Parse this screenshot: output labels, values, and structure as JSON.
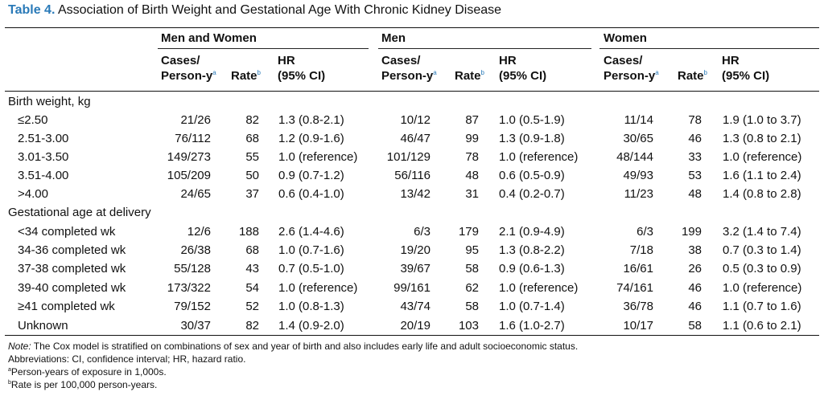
{
  "title": {
    "number": "Table 4.",
    "text": "Association of Birth Weight and Gestational Age With Chronic Kidney Disease"
  },
  "groups": [
    "Men and Women",
    "Men",
    "Women"
  ],
  "col_headers": {
    "cases_line1": "Cases/",
    "cases_line2": "Person-y",
    "cases_sup": "a",
    "rate": "Rate",
    "rate_sup": "b",
    "hr_line1": "HR",
    "hr_line2": "(95% CI)"
  },
  "sections": [
    {
      "label": "Birth weight, kg",
      "rows": [
        {
          "label": "≤2.50",
          "c1": "21/26",
          "r1": "82",
          "h1": "1.3 (0.8-2.1)",
          "c2": "10/12",
          "r2": "87",
          "h2": "1.0 (0.5-1.9)",
          "c3": "11/14",
          "r3": "78",
          "h3": "1.9 (1.0 to 3.7)"
        },
        {
          "label": "2.51-3.00",
          "c1": "76/112",
          "r1": "68",
          "h1": "1.2 (0.9-1.6)",
          "c2": "46/47",
          "r2": "99",
          "h2": "1.3 (0.9-1.8)",
          "c3": "30/65",
          "r3": "46",
          "h3": "1.3 (0.8 to 2.1)"
        },
        {
          "label": "3.01-3.50",
          "c1": "149/273",
          "r1": "55",
          "h1": "1.0 (reference)",
          "c2": "101/129",
          "r2": "78",
          "h2": "1.0 (reference)",
          "c3": "48/144",
          "r3": "33",
          "h3": "1.0 (reference)"
        },
        {
          "label": "3.51-4.00",
          "c1": "105/209",
          "r1": "50",
          "h1": "0.9 (0.7-1.2)",
          "c2": "56/116",
          "r2": "48",
          "h2": "0.6 (0.5-0.9)",
          "c3": "49/93",
          "r3": "53",
          "h3": "1.6 (1.1 to 2.4)"
        },
        {
          "label": ">4.00",
          "c1": "24/65",
          "r1": "37",
          "h1": "0.6 (0.4-1.0)",
          "c2": "13/42",
          "r2": "31",
          "h2": "0.4 (0.2-0.7)",
          "c3": "11/23",
          "r3": "48",
          "h3": "1.4 (0.8 to 2.8)"
        }
      ]
    },
    {
      "label": "Gestational age at delivery",
      "rows": [
        {
          "label": "<34 completed wk",
          "c1": "12/6",
          "r1": "188",
          "h1": "2.6 (1.4-4.6)",
          "c2": "6/3",
          "r2": "179",
          "h2": "2.1 (0.9-4.9)",
          "c3": "6/3",
          "r3": "199",
          "h3": "3.2 (1.4 to 7.4)"
        },
        {
          "label": "34-36 completed wk",
          "c1": "26/38",
          "r1": "68",
          "h1": "1.0 (0.7-1.6)",
          "c2": "19/20",
          "r2": "95",
          "h2": "1.3 (0.8-2.2)",
          "c3": "7/18",
          "r3": "38",
          "h3": "0.7 (0.3 to 1.4)"
        },
        {
          "label": "37-38 completed wk",
          "c1": "55/128",
          "r1": "43",
          "h1": "0.7 (0.5-1.0)",
          "c2": "39/67",
          "r2": "58",
          "h2": "0.9 (0.6-1.3)",
          "c3": "16/61",
          "r3": "26",
          "h3": "0.5 (0.3 to 0.9)"
        },
        {
          "label": "39-40 completed wk",
          "c1": "173/322",
          "r1": "54",
          "h1": "1.0 (reference)",
          "c2": "99/161",
          "r2": "62",
          "h2": "1.0 (reference)",
          "c3": "74/161",
          "r3": "46",
          "h3": "1.0 (reference)"
        },
        {
          "label": "≥41 completed wk",
          "c1": "79/152",
          "r1": "52",
          "h1": "1.0 (0.8-1.3)",
          "c2": "43/74",
          "r2": "58",
          "h2": "1.0 (0.7-1.4)",
          "c3": "36/78",
          "r3": "46",
          "h3": "1.1 (0.7 to 1.6)"
        },
        {
          "label": "Unknown",
          "c1": "30/37",
          "r1": "82",
          "h1": "1.4 (0.9-2.0)",
          "c2": "20/19",
          "r2": "103",
          "h2": "1.6 (1.0-2.7)",
          "c3": "10/17",
          "r3": "58",
          "h3": "1.1 (0.6 to 2.1)"
        }
      ]
    }
  ],
  "notes": {
    "note_label": "Note:",
    "note_text": " The Cox model is stratified on combinations of sex and year of birth and also includes early life and adult socioeconomic status.",
    "abbreviations": "Abbreviations: CI, confidence interval; HR, hazard ratio.",
    "a_sup": "a",
    "a_text": "Person-years of exposure in 1,000s.",
    "b_sup": "b",
    "b_text": "Rate is per 100,000 person-years."
  },
  "colors": {
    "accent": "#2a7ab8"
  }
}
